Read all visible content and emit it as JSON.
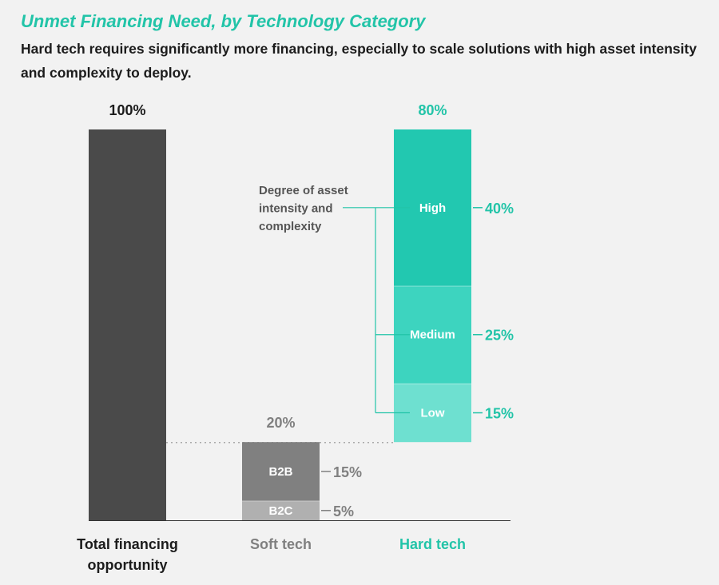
{
  "title": "Unmet Financing Need, by Technology Category",
  "subtitle": "Hard tech requires significantly more financing, especially to scale solutions with high asset intensity and complexity to deploy.",
  "colors": {
    "total": "#4a4a4a",
    "soft_b2b": "#808080",
    "soft_b2c": "#b0b0b0",
    "soft_text": "#808080",
    "hard_high": "#22c8b0",
    "hard_medium": "#3dd4bf",
    "hard_low": "#6ee0d0",
    "hard_text": "#22c4a8",
    "annotation": "#555555"
  },
  "annotation": {
    "lines": [
      "Degree of asset",
      "intensity and",
      "complexity"
    ]
  },
  "chart_data": {
    "type": "bar",
    "stacked": true,
    "ylim": [
      0,
      100
    ],
    "categories": [
      {
        "name": "total",
        "label_lines": [
          "Total financing",
          "opportunity"
        ],
        "total_label": "100%",
        "base": 0,
        "segments": [
          {
            "name": "",
            "value": 100,
            "value_label": ""
          }
        ]
      },
      {
        "name": "soft",
        "label_lines": [
          "Soft tech"
        ],
        "total_label": "20%",
        "base": 0,
        "segments": [
          {
            "name": "B2C",
            "value": 5,
            "value_label": "5%"
          },
          {
            "name": "B2B",
            "value": 15,
            "value_label": "15%"
          }
        ]
      },
      {
        "name": "hard",
        "label_lines": [
          "Hard tech"
        ],
        "total_label": "80%",
        "base": 20,
        "segments": [
          {
            "name": "Low",
            "value": 15,
            "value_label": "15%"
          },
          {
            "name": "Medium",
            "value": 25,
            "value_label": "25%"
          },
          {
            "name": "High",
            "value": 40,
            "value_label": "40%"
          }
        ]
      }
    ]
  }
}
